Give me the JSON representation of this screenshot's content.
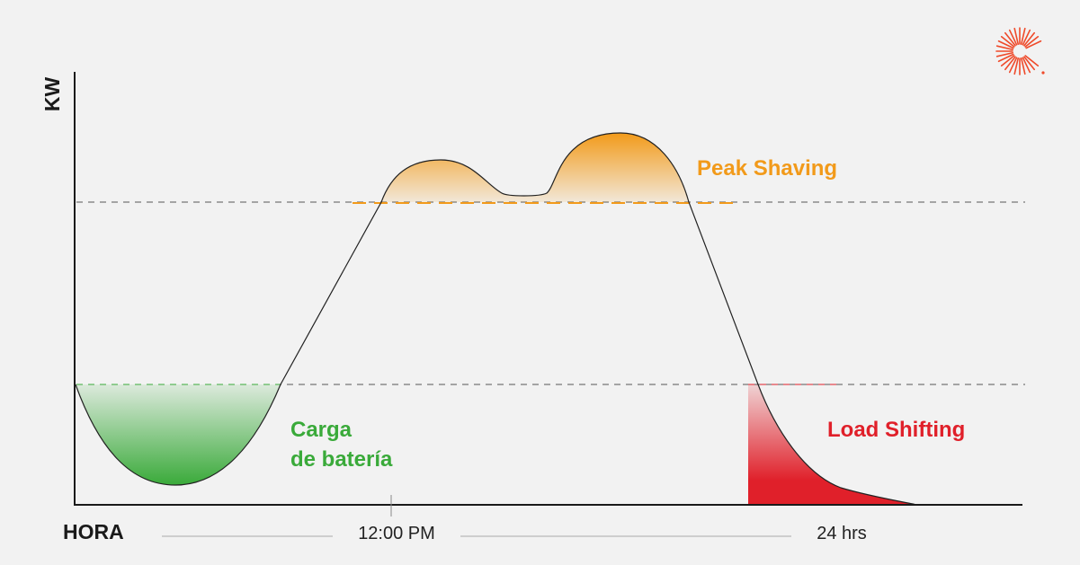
{
  "axes": {
    "y_label": "KW",
    "x_label": "HORA",
    "x_mid_label": "12:00 PM",
    "x_end_label": "24 hrs"
  },
  "regions": {
    "peak_shaving": "Peak Shaving",
    "battery_charge": [
      "Carga",
      "de batería"
    ],
    "load_shifting": "Load Shifting"
  },
  "colors": {
    "background": "#f2f2f2",
    "axis": "#1a1a1a",
    "curve": "#222222",
    "peak_shaving": "#f29a1a",
    "battery_charge": "#3aaa3a",
    "load_shifting": "#e0202a",
    "threshold_line": "#555555"
  },
  "logo": {
    "icon": "sunburst-logo-icon"
  }
}
